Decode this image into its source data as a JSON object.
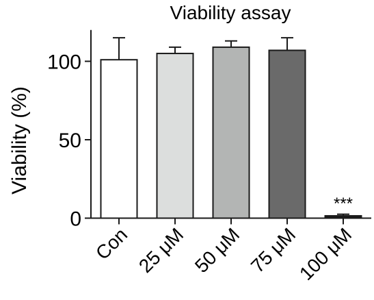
{
  "chart_data": {
    "type": "bar",
    "title": "Viability assay",
    "xlabel": "",
    "ylabel": "Viability (%)",
    "ylim": [
      0,
      120
    ],
    "yticks": [
      0,
      50,
      100
    ],
    "categories": [
      "Con",
      "25 μM",
      "50 μM",
      "75 μM",
      "100 μM"
    ],
    "values": [
      101,
      105,
      109,
      107,
      1.5
    ],
    "errors": [
      14,
      4,
      4,
      8,
      1
    ],
    "colors": [
      "#ffffff",
      "#dcdedd",
      "#b3b5b4",
      "#6a6a6a",
      "#1a1a1a"
    ],
    "annotations": [
      {
        "category": "100 μM",
        "text": "***"
      }
    ],
    "grid": false,
    "legend": "none"
  }
}
